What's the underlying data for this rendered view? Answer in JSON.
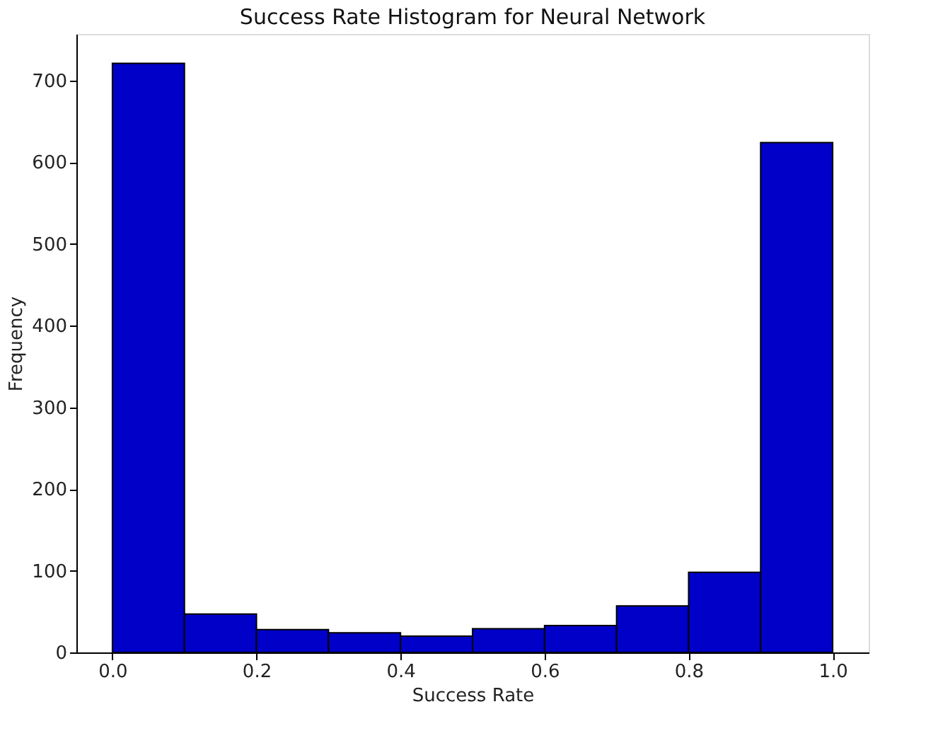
{
  "chart_data": {
    "type": "histogram",
    "title": "Success Rate Histogram for Neural Network",
    "xlabel": "Success Rate",
    "ylabel": "Frequency",
    "bins": [
      0.0,
      0.1,
      0.2,
      0.3,
      0.4,
      0.5,
      0.6,
      0.7,
      0.8,
      0.9,
      1.0
    ],
    "values": [
      721,
      47,
      28,
      24,
      20,
      29,
      33,
      57,
      98,
      624
    ],
    "color": "#0000c8",
    "xlim": [
      -0.05,
      1.05
    ],
    "ylim": [
      0,
      757
    ],
    "xticks": [
      {
        "value": 0,
        "label": "0.0"
      },
      0.2,
      0.4,
      0.6,
      0.8,
      {
        "value": 1,
        "label": "1.0"
      }
    ],
    "yticks": [
      0,
      100,
      200,
      300,
      400,
      500,
      600,
      700
    ],
    "grid": false
  }
}
